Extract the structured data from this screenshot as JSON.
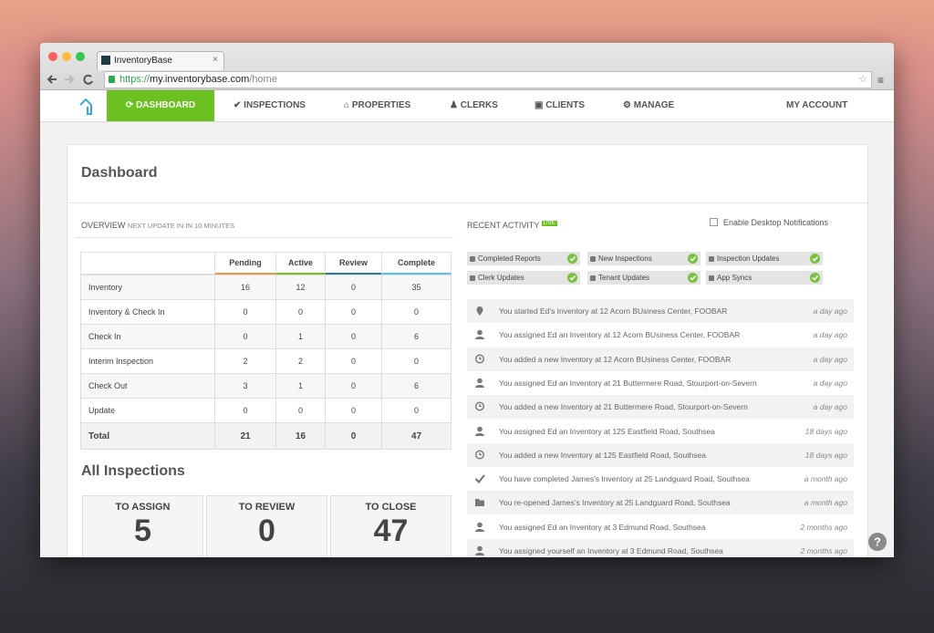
{
  "browser": {
    "tab_title": "InventoryBase",
    "url_scheme": "https://",
    "url_host": "my.inventorybase.com",
    "url_path": "/home"
  },
  "nav": {
    "items": [
      "DASHBOARD",
      "INSPECTIONS",
      "PROPERTIES",
      "CLERKS",
      "CLIENTS",
      "MANAGE"
    ],
    "account": "MY ACCOUNT"
  },
  "page_title": "Dashboard",
  "overview": {
    "title": "OVERVIEW",
    "note": "NEXT UPDATE IN IN 10 MINUTES",
    "columns": [
      "Pending",
      "Active",
      "Review",
      "Complete"
    ],
    "rows": [
      {
        "label": "Inventory",
        "values": [
          16,
          12,
          0,
          35
        ]
      },
      {
        "label": "Inventory & Check In",
        "values": [
          0,
          0,
          0,
          0
        ]
      },
      {
        "label": "Check In",
        "values": [
          0,
          1,
          0,
          6
        ]
      },
      {
        "label": "Interim Inspection",
        "values": [
          2,
          2,
          0,
          0
        ]
      },
      {
        "label": "Check Out",
        "values": [
          3,
          1,
          0,
          6
        ]
      },
      {
        "label": "Update",
        "values": [
          0,
          0,
          0,
          0
        ]
      }
    ],
    "total": {
      "label": "Total",
      "values": [
        21,
        16,
        0,
        47
      ]
    }
  },
  "all_inspections": {
    "title": "All Inspections",
    "cards": [
      {
        "label": "TO ASSIGN",
        "value": 5
      },
      {
        "label": "TO REVIEW",
        "value": 0
      },
      {
        "label": "TO CLOSE",
        "value": 47
      }
    ]
  },
  "recent_activity": {
    "title": "RECENT ACTIVITY",
    "badge": "LIVE",
    "notifications": "Enable Desktop Notifications",
    "filters": [
      "Completed Reports",
      "New Inspections",
      "Inspection Updates",
      "Clerk Updates",
      "Tenant Updates",
      "App Syncs"
    ],
    "items": [
      {
        "text": "You started Ed's Inventory at 12 Acorn BUsiness Center, FOOBAR",
        "time": "a day ago"
      },
      {
        "text": "You assigned Ed an Inventory at 12 Acorn BUsiness Center, FOOBAR",
        "time": "a day ago"
      },
      {
        "text": "You added a new Inventory at 12 Acorn BUsiness Center, FOOBAR",
        "time": "a day ago"
      },
      {
        "text": "You assigned Ed an Inventory at 21 Buttermere Road, Stourport-on-Severn",
        "time": "a day ago"
      },
      {
        "text": "You added a new Inventory at 21 Buttermere Road, Stourport-on-Severn",
        "time": "a day ago"
      },
      {
        "text": "You assigned Ed an Inventory at 125 Eastfield Road, Southsea",
        "time": "18 days ago"
      },
      {
        "text": "You added a new Inventory at 125 Eastfield Road, Southsea",
        "time": "18 days ago"
      },
      {
        "text": "You have completed James's Inventory at 25 Landguard Road, Southsea",
        "time": "a month ago"
      },
      {
        "text": "You re-opened James's Inventory at 25 Landguard Road, Southsea",
        "time": "a month ago"
      },
      {
        "text": "You assigned Ed an Inventory at 3 Edmund Road, Southsea",
        "time": "2 months ago"
      },
      {
        "text": "You assigned yourself an Inventory at 3 Edmund Road, Southsea",
        "time": "2 months ago"
      }
    ]
  }
}
